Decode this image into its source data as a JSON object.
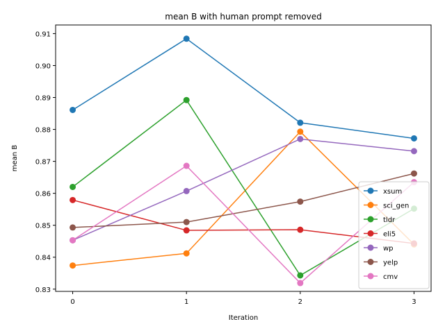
{
  "chart_data": {
    "type": "line",
    "title": "mean B with human prompt removed",
    "xlabel": "Iteration",
    "ylabel": "mean B",
    "x": [
      0,
      1,
      2,
      3
    ],
    "xlim": [
      -0.15,
      3.15
    ],
    "ylim": [
      0.8293,
      0.9127
    ],
    "yticks": [
      0.83,
      0.84,
      0.85,
      0.86,
      0.87,
      0.88,
      0.89,
      0.9,
      0.91
    ],
    "ytick_labels": [
      "0.83",
      "0.84",
      "0.85",
      "0.86",
      "0.87",
      "0.88",
      "0.89",
      "0.90",
      "0.91"
    ],
    "xticks": [
      0,
      1,
      2,
      3
    ],
    "xtick_labels": [
      "0",
      "1",
      "2",
      "3"
    ],
    "grid": false,
    "legend_position": "bottom-right",
    "series": [
      {
        "name": "xsum",
        "color": "#1f77b4",
        "values": [
          0.8861,
          0.9084,
          0.8821,
          0.8772
        ]
      },
      {
        "name": "sci_gen",
        "color": "#ff7f0e",
        "values": [
          0.8374,
          0.8412,
          0.8793,
          0.844
        ]
      },
      {
        "name": "tldr",
        "color": "#2ca02c",
        "values": [
          0.862,
          0.8892,
          0.8343,
          0.8552
        ]
      },
      {
        "name": "eli5",
        "color": "#d62728",
        "values": [
          0.8579,
          0.8484,
          0.8486,
          0.8443
        ]
      },
      {
        "name": "wp",
        "color": "#9467bd",
        "values": [
          0.8453,
          0.8607,
          0.877,
          0.8732
        ]
      },
      {
        "name": "yelp",
        "color": "#8c564b",
        "values": [
          0.8493,
          0.851,
          0.8574,
          0.8662
        ]
      },
      {
        "name": "cmv",
        "color": "#e377c2",
        "values": [
          0.8453,
          0.8686,
          0.8319,
          0.8635
        ]
      }
    ]
  }
}
